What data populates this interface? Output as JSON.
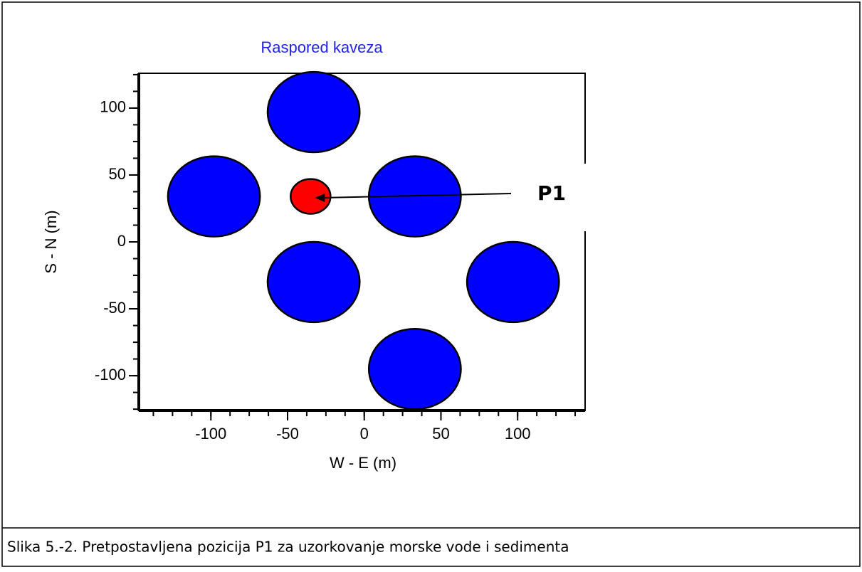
{
  "chart_data": {
    "type": "scatter",
    "title": "Raspored kaveza",
    "xlabel": "W - E (m)",
    "ylabel": "S - N (m)",
    "xlim": [
      -147,
      144
    ],
    "ylim": [
      -126,
      126
    ],
    "xticks": [
      -100,
      -50,
      0,
      50,
      100
    ],
    "yticks": [
      -100,
      -50,
      0,
      50,
      100
    ],
    "minor_tick_step": 12.5,
    "series": [
      {
        "color": "#0000ff",
        "x": [
          -33,
          -98,
          33,
          -33,
          97,
          33
        ],
        "y": [
          97,
          34,
          34,
          -30,
          -30,
          -95
        ],
        "sizes": [
          30,
          30,
          30,
          30,
          30,
          30
        ]
      },
      {
        "color": "#ff0000",
        "x": [
          -35
        ],
        "y": [
          34
        ],
        "sizes": [
          13
        ]
      }
    ],
    "annotation": "P1"
  },
  "caption": "Slika 5.-2. Pretpostavljena pozicija P1 za uzorkovanje morske vode i sedimenta"
}
